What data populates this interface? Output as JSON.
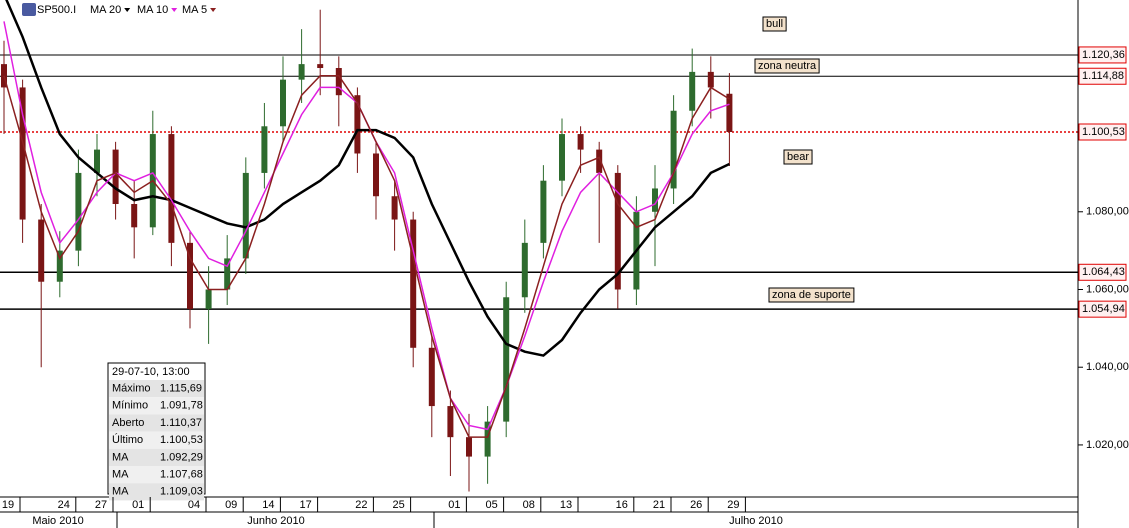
{
  "toolbar": {
    "symbol": "SP500.I",
    "indicators": [
      {
        "label": "MA 20",
        "color": "#000000"
      },
      {
        "label": "MA 10",
        "color": "#e020e0"
      },
      {
        "label": "MA 5",
        "color": "#8b2020"
      }
    ]
  },
  "chart_data": {
    "type": "candlestick",
    "categories": [
      "19",
      null,
      null,
      "24",
      null,
      "27",
      null,
      "01",
      null,
      null,
      "04",
      null,
      "09",
      null,
      "14",
      null,
      "17",
      null,
      null,
      "22",
      null,
      "25",
      null,
      null,
      "01",
      null,
      "05",
      null,
      "08",
      null,
      "13",
      null,
      null,
      "16",
      null,
      "21",
      null,
      "26",
      null,
      "29"
    ],
    "months": [
      "Maio 2010",
      "Junho 2010",
      "Julho 2010"
    ],
    "open": [
      1118,
      1112,
      1078,
      1062,
      1070,
      1090,
      1096,
      1082,
      1076,
      1100,
      1072,
      1055,
      1060,
      1068,
      1090,
      1102,
      1114,
      1118,
      1117,
      1110,
      1095,
      1084,
      1078,
      1045,
      1030,
      1022,
      1017,
      1026,
      1058,
      1072,
      1088,
      1100,
      1096,
      1090,
      1060,
      1080,
      1086,
      1106,
      1116,
      1110.37
    ],
    "high": [
      1124,
      1114,
      1082,
      1075,
      1096,
      1100,
      1098,
      1088,
      1106,
      1102,
      1075,
      1066,
      1074,
      1094,
      1108,
      1120,
      1127,
      1132,
      1120,
      1112,
      1098,
      1088,
      1080,
      1048,
      1034,
      1028,
      1030,
      1062,
      1078,
      1092,
      1104,
      1102,
      1098,
      1092,
      1084,
      1092,
      1110,
      1122,
      1120,
      1115.69
    ],
    "low": [
      1100,
      1072,
      1040,
      1058,
      1066,
      1084,
      1078,
      1068,
      1074,
      1066,
      1050,
      1046,
      1056,
      1064,
      1086,
      1098,
      1108,
      1110,
      1102,
      1090,
      1078,
      1070,
      1040,
      1022,
      1012,
      1008,
      1010,
      1022,
      1054,
      1068,
      1084,
      1090,
      1072,
      1055,
      1056,
      1066,
      1082,
      1102,
      1104,
      1091.78
    ],
    "close": [
      1112,
      1078,
      1062,
      1070,
      1090,
      1096,
      1082,
      1076,
      1100,
      1072,
      1055,
      1060,
      1068,
      1090,
      1102,
      1114,
      1118,
      1117,
      1110,
      1095,
      1084,
      1078,
      1045,
      1030,
      1022,
      1017,
      1026,
      1058,
      1072,
      1088,
      1100,
      1096,
      1090,
      1060,
      1080,
      1086,
      1106,
      1116,
      1112,
      1100.53
    ],
    "up_color": "#2e6b2e",
    "down_color": "#7a1515",
    "series": [
      {
        "name": "MA 20",
        "color": "#000000",
        "values": [
          1136,
          1125,
          1112,
          1100,
          1094,
          1090,
          1086,
          1083,
          1084,
          1083,
          1081,
          1079,
          1077,
          1076,
          1078,
          1082,
          1085,
          1088,
          1092,
          1101,
          1101,
          1099,
          1094,
          1082,
          1072,
          1062,
          1053,
          1046,
          1044,
          1043,
          1047,
          1054,
          1060,
          1064,
          1070,
          1076,
          1080,
          1084,
          1090,
          1092.29
        ]
      },
      {
        "name": "MA 10",
        "color": "#e020e0",
        "values": [
          1129,
          1105,
          1085,
          1072,
          1078,
          1085,
          1090,
          1088,
          1090,
          1083,
          1075,
          1068,
          1066,
          1075,
          1085,
          1095,
          1105,
          1112,
          1112,
          1108,
          1098,
          1090,
          1070,
          1050,
          1032,
          1025,
          1024,
          1035,
          1048,
          1062,
          1075,
          1085,
          1090,
          1085,
          1080,
          1082,
          1090,
          1100,
          1106,
          1107.68
        ]
      },
      {
        "name": "MA 5",
        "color": "#8b2020",
        "values": [
          1115,
          1098,
          1080,
          1068,
          1075,
          1088,
          1090,
          1085,
          1088,
          1082,
          1068,
          1060,
          1060,
          1068,
          1082,
          1098,
          1110,
          1115,
          1115,
          1108,
          1098,
          1088,
          1068,
          1048,
          1032,
          1022,
          1022,
          1035,
          1050,
          1066,
          1082,
          1092,
          1094,
          1082,
          1076,
          1078,
          1090,
          1104,
          1112,
          1109.03
        ]
      }
    ],
    "ylim": [
      1006.6,
      1134.5
    ],
    "yticks": [
      {
        "value": 1020,
        "label": "1.020,00"
      },
      {
        "value": 1040,
        "label": "1.040,00"
      },
      {
        "value": 1060,
        "label": "1.060,00"
      },
      {
        "value": 1080,
        "label": "1.080,00"
      }
    ],
    "levels": [
      {
        "value": 1120.36,
        "label": "1.120,36"
      },
      {
        "value": 1114.88,
        "label": "1.114,88"
      },
      {
        "value": 1100.53,
        "label": "1.100,53"
      },
      {
        "value": 1064.43,
        "label": "1.064,43"
      },
      {
        "value": 1054.94,
        "label": "1.054,94"
      }
    ],
    "zones": [
      "bull",
      "zona neutra",
      "bear",
      "zona de suporte"
    ],
    "info": {
      "title": "29-07-10, 13:00",
      "rows": [
        [
          "Máximo",
          "1.115,69"
        ],
        [
          "Mínimo",
          "1.091,78"
        ],
        [
          "Aberto",
          "1.110,37"
        ],
        [
          "Último",
          "1.100,53"
        ],
        [
          "MA",
          "1.092,29"
        ],
        [
          "MA",
          "1.107,68"
        ],
        [
          "MA",
          "1.109,03"
        ]
      ]
    }
  }
}
